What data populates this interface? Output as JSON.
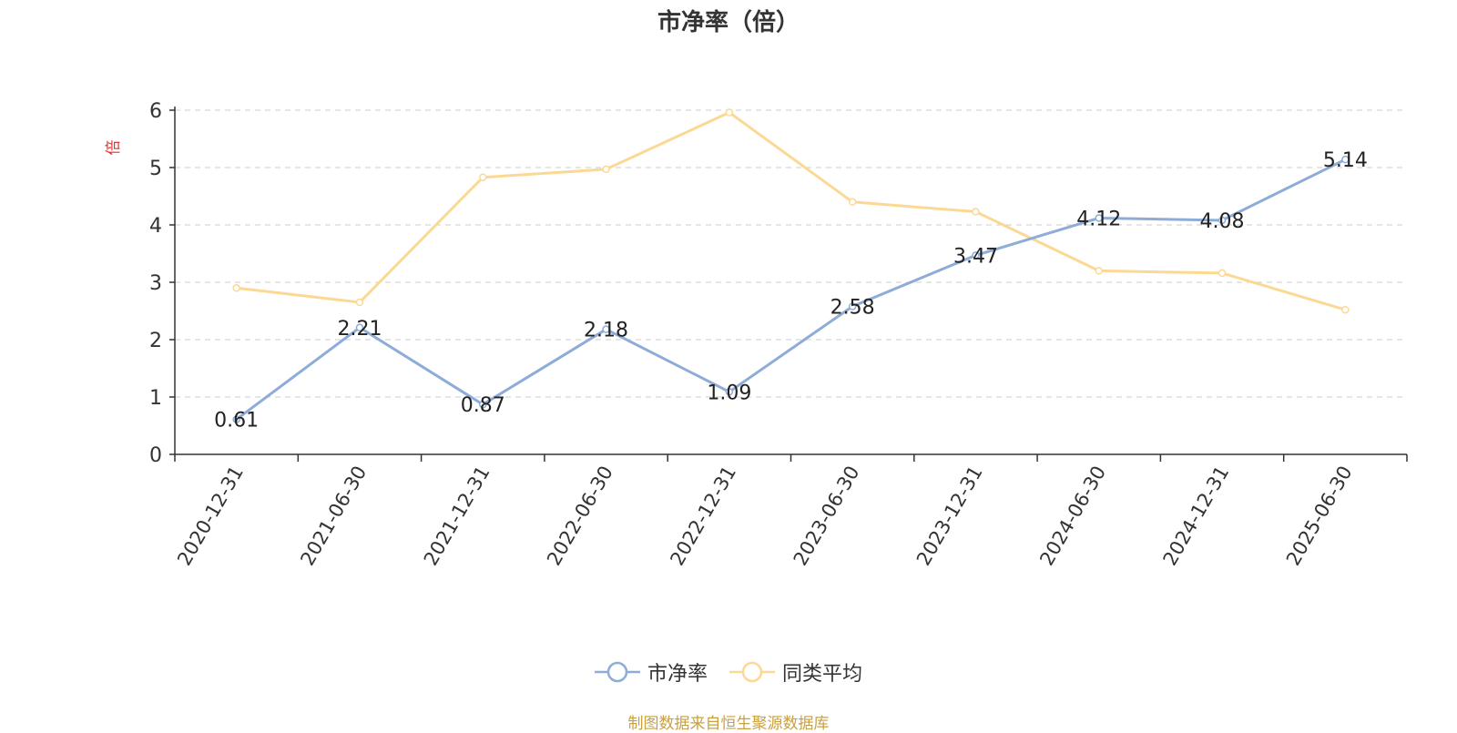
{
  "chart_data": {
    "type": "line",
    "title": "市净率（倍）",
    "ylabel": "倍",
    "ylim": [
      0,
      6
    ],
    "yticks": [
      0,
      1,
      2,
      3,
      4,
      5,
      6
    ],
    "grid": true,
    "legend_position": "bottom",
    "categories": [
      "2020-12-31",
      "2021-06-30",
      "2021-12-31",
      "2022-06-30",
      "2022-12-31",
      "2023-06-30",
      "2023-12-31",
      "2024-06-30",
      "2024-12-31",
      "2025-06-30"
    ],
    "series": [
      {
        "name": "市净率",
        "color": "#8eacd8",
        "values": [
          0.61,
          2.21,
          0.87,
          2.18,
          1.09,
          2.58,
          3.47,
          4.12,
          4.08,
          5.14
        ],
        "labels": [
          "0.61",
          "2.21",
          "0.87",
          "2.18",
          "1.09",
          "2.58",
          "3.47",
          "4.12",
          "4.08",
          "5.14"
        ]
      },
      {
        "name": "同类平均",
        "color": "#fbd994",
        "values": [
          2.9,
          2.65,
          4.83,
          4.97,
          5.96,
          4.4,
          4.23,
          3.2,
          3.16,
          2.52
        ]
      }
    ]
  },
  "source_note": "制图数据来自恒生聚源数据库",
  "colors": {
    "axis": "#333333",
    "grid": "#cccccc",
    "ylabel": "#e03030",
    "text": "#333333",
    "note": "#c8a040"
  }
}
